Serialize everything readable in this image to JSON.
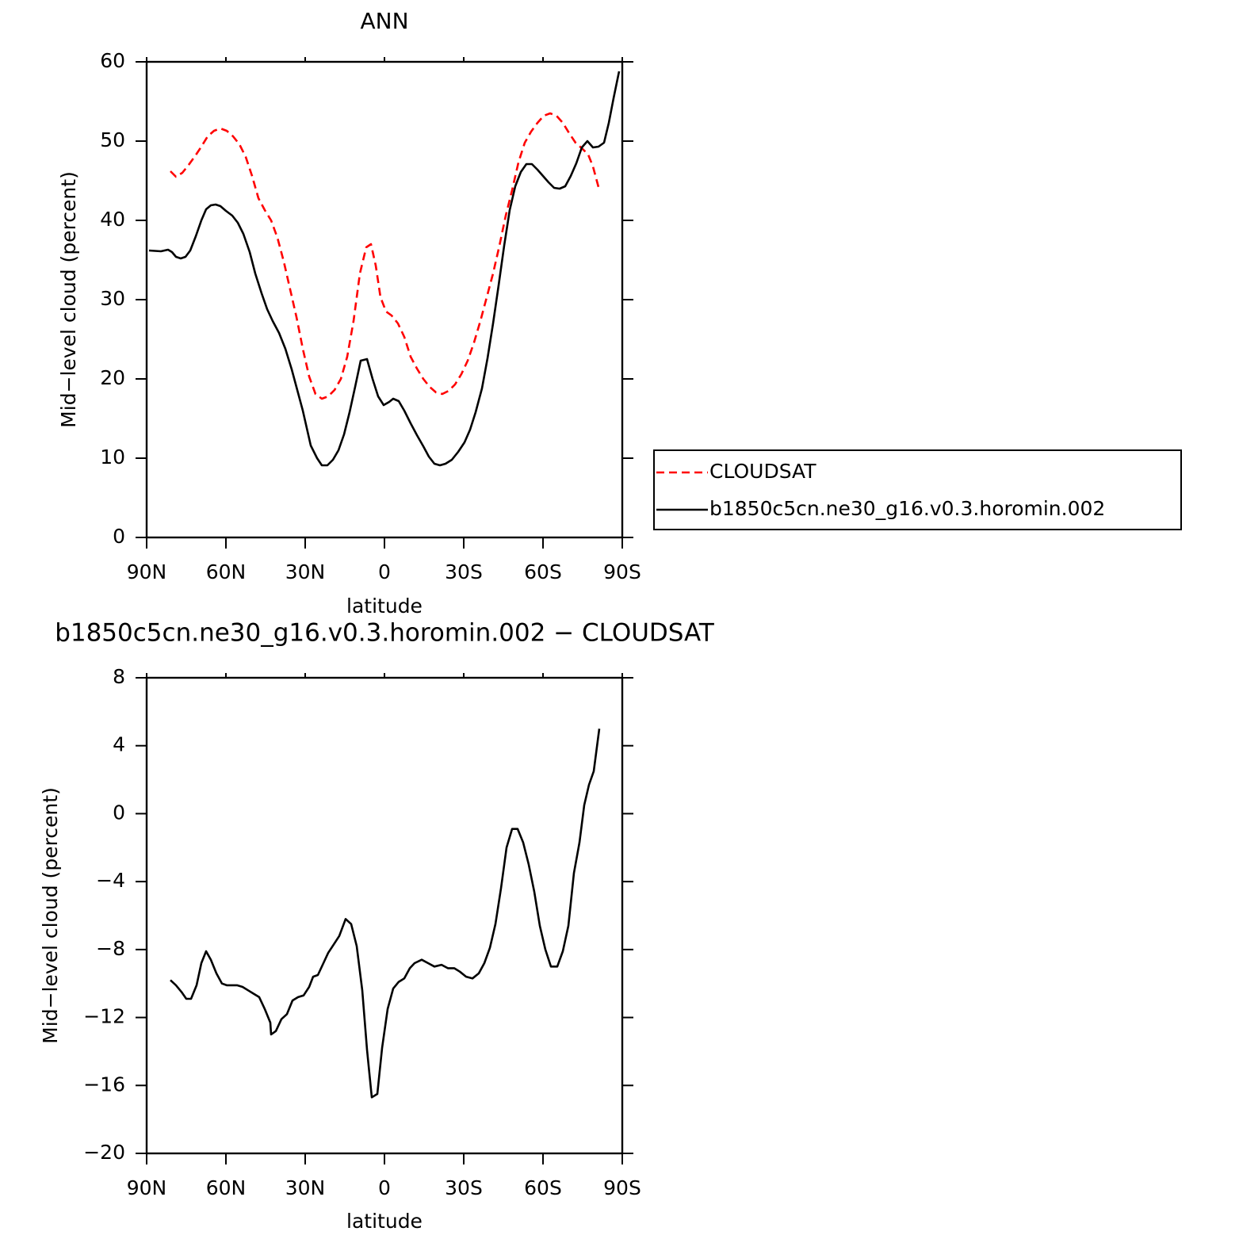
{
  "chart_data": [
    {
      "type": "line",
      "title": "ANN",
      "xlabel": "latitude",
      "ylabel": "Mid−level cloud (percent)",
      "xlim": [
        90,
        -90
      ],
      "xticks": [
        {
          "value": 90,
          "label": "90N"
        },
        {
          "value": 60,
          "label": "60N"
        },
        {
          "value": 30,
          "label": "30N"
        },
        0,
        {
          "value": -30,
          "label": "30S"
        },
        {
          "value": -60,
          "label": "60S"
        },
        {
          "value": -90,
          "label": "90S"
        }
      ],
      "ylim": [
        0,
        60
      ],
      "yticks": [
        0,
        10,
        20,
        30,
        40,
        50,
        60
      ],
      "legend": "right",
      "series": [
        {
          "name": "CLOUDSAT",
          "color": "#ff0000",
          "dash": true,
          "x": [
            81,
            78.9,
            76.5,
            74.1,
            71.7,
            69.3,
            66.9,
            64.5,
            62.1,
            59.7,
            57.3,
            54.9,
            52.5,
            50.1,
            47.7,
            45.3,
            42.9,
            40.5,
            38.1,
            35.7,
            33.3,
            30.9,
            28.5,
            26.1,
            23.7,
            21.3,
            18.9,
            16.5,
            14.1,
            11.7,
            9.3,
            6.9,
            5.1,
            3.3,
            1.5,
            -0.6,
            -2.7,
            -5.1,
            -7.5,
            -9.9,
            -12.3,
            -14.7,
            -17.1,
            -19.5,
            -21.9,
            -24.3,
            -26.7,
            -29.1,
            -31.5,
            -33.9,
            -36.3,
            -38.7,
            -41.1,
            -43.5,
            -45.9,
            -48.3,
            -50.7,
            -53.1,
            -55.5,
            -57.9,
            -60.3,
            -62.7,
            -65.1,
            -67.5,
            -69.9,
            -72.3,
            -74.7,
            -77.1,
            -78.9,
            -81
          ],
          "values": [
            46.2,
            45.5,
            46.0,
            47.0,
            48.1,
            49.3,
            50.6,
            51.3,
            51.6,
            51.3,
            50.6,
            49.6,
            48.0,
            45.6,
            42.8,
            41.3,
            40.0,
            37.8,
            34.8,
            31.3,
            27.8,
            23.8,
            20.3,
            18.1,
            17.5,
            17.8,
            18.6,
            20.0,
            22.8,
            27.3,
            33.3,
            36.6,
            37.0,
            34.3,
            30.3,
            28.5,
            28.0,
            27.0,
            25.3,
            22.8,
            21.3,
            20.0,
            19.0,
            18.3,
            18.1,
            18.5,
            19.3,
            20.6,
            22.3,
            24.6,
            27.3,
            30.3,
            33.3,
            36.8,
            40.6,
            43.8,
            47.3,
            49.8,
            51.2,
            52.3,
            53.2,
            53.5,
            53.2,
            52.3,
            51.0,
            49.8,
            49.1,
            48.3,
            46.8,
            44.2
          ]
        },
        {
          "name": "b1850c5cn.ne30_g16.v0.3.horomin.002",
          "color": "#000000",
          "dash": false,
          "x": [
            89.1,
            84.6,
            81.9,
            80.4,
            78.9,
            77.1,
            75.3,
            73.5,
            71.4,
            69.3,
            67.5,
            65.7,
            63.9,
            62.1,
            60,
            57.6,
            55.5,
            53.4,
            51,
            48.9,
            46.5,
            44.4,
            42.3,
            39.9,
            37.5,
            35.1,
            33,
            30.9,
            27.9,
            25.5,
            23.7,
            21.6,
            19.5,
            17.4,
            15.3,
            13.2,
            11.1,
            9,
            6.6,
            4.5,
            2.4,
            0.3,
            -1.8,
            -3.3,
            -5.4,
            -7.5,
            -9.9,
            -12.3,
            -14.7,
            -16.8,
            -18.9,
            -21,
            -23.1,
            -25.5,
            -27.9,
            -30.3,
            -32.4,
            -34.5,
            -36.9,
            -39,
            -41.1,
            -43.2,
            -45.3,
            -47.4,
            -49.5,
            -51.6,
            -53.7,
            -55.8,
            -57.9,
            -60,
            -62.1,
            -64.2,
            -66.3,
            -68.4,
            -70.5,
            -72.6,
            -74.7,
            -76.8,
            -78.9,
            -81,
            -83.1,
            -84.9,
            -86.7,
            -88.8
          ],
          "values": [
            36.2,
            36.1,
            36.3,
            36.0,
            35.4,
            35.2,
            35.4,
            36.2,
            38.0,
            40.0,
            41.4,
            41.9,
            42.0,
            41.8,
            41.2,
            40.6,
            39.7,
            38.3,
            36.0,
            33.3,
            30.8,
            28.8,
            27.3,
            25.8,
            23.8,
            21.2,
            18.6,
            16.0,
            11.6,
            10.0,
            9.1,
            9.1,
            9.8,
            11.0,
            13.0,
            15.8,
            19.0,
            22.3,
            22.5,
            20.0,
            17.8,
            16.7,
            17.1,
            17.5,
            17.2,
            16.0,
            14.4,
            12.9,
            11.5,
            10.2,
            9.3,
            9.1,
            9.3,
            9.8,
            10.8,
            12.0,
            13.6,
            15.8,
            18.8,
            22.6,
            27.0,
            31.8,
            36.8,
            41.3,
            44.3,
            46.1,
            47.1,
            47.1,
            46.4,
            45.6,
            44.8,
            44.1,
            44.0,
            44.3,
            45.6,
            47.2,
            49.2,
            50.0,
            49.2,
            49.3,
            49.8,
            52.3,
            55.4,
            58.8
          ]
        }
      ]
    },
    {
      "type": "line",
      "title": "b1850c5cn.ne30_g16.v0.3.horomin.002 − CLOUDSAT",
      "xlabel": "latitude",
      "ylabel": "Mid−level cloud (percent)",
      "xlim": [
        90,
        -90
      ],
      "xticks": [
        {
          "value": 90,
          "label": "90N"
        },
        {
          "value": 60,
          "label": "60N"
        },
        {
          "value": 30,
          "label": "30N"
        },
        0,
        {
          "value": -30,
          "label": "30S"
        },
        {
          "value": -60,
          "label": "60S"
        },
        {
          "value": -90,
          "label": "90S"
        }
      ],
      "ylim": [
        -20,
        8
      ],
      "yticks": [
        8,
        4,
        0,
        {
          "value": -4,
          "label": "−4"
        },
        {
          "value": -8,
          "label": "−8"
        },
        {
          "value": -12,
          "label": "−12"
        },
        {
          "value": -16,
          "label": "−16"
        },
        {
          "value": -20,
          "label": "−20"
        }
      ],
      "series": [
        {
          "color": "#000000",
          "dash": false,
          "x": [
            81,
            78.9,
            76.8,
            75,
            73.2,
            71.1,
            69.3,
            67.5,
            65.7,
            63.6,
            61.5,
            59.7,
            57.9,
            55.8,
            53.7,
            51.6,
            49.5,
            47.4,
            45.3,
            43.2,
            42.9,
            41.1,
            39,
            36.9,
            34.8,
            32.7,
            30.6,
            28.5,
            27,
            25.2,
            23.1,
            21.3,
            19.2,
            17.1,
            14.7,
            12.6,
            10.5,
            8.4,
            6.6,
            4.8,
            2.7,
            0.9,
            -1.2,
            -3.3,
            -5.4,
            -7.5,
            -9.6,
            -11.4,
            -14.1,
            -16.5,
            -18.9,
            -21.6,
            -24,
            -26.4,
            -28.5,
            -30.9,
            -33.3,
            -35.7,
            -37.8,
            -39.9,
            -42,
            -44.1,
            -46.2,
            -48.3,
            -50.4,
            -52.5,
            -54.6,
            -56.7,
            -58.8,
            -60.9,
            -63,
            -65.4,
            -67.5,
            -69.6,
            -71.7,
            -73.8,
            -75.6,
            -77.4,
            -79.2,
            -81.3
          ],
          "values": [
            -9.8,
            -10.1,
            -10.5,
            -10.9,
            -10.9,
            -10.1,
            -8.8,
            -8.1,
            -8.6,
            -9.4,
            -10.0,
            -10.1,
            -10.1,
            -10.1,
            -10.2,
            -10.4,
            -10.6,
            -10.8,
            -11.5,
            -12.3,
            -13.0,
            -12.8,
            -12.1,
            -11.8,
            -11.0,
            -10.8,
            -10.7,
            -10.2,
            -9.6,
            -9.5,
            -8.8,
            -8.2,
            -7.7,
            -7.2,
            -6.2,
            -6.5,
            -7.8,
            -10.4,
            -13.9,
            -16.7,
            -16.5,
            -13.8,
            -11.5,
            -10.3,
            -9.9,
            -9.7,
            -9.1,
            -8.8,
            -8.6,
            -8.8,
            -9.0,
            -8.9,
            -9.1,
            -9.1,
            -9.3,
            -9.6,
            -9.7,
            -9.4,
            -8.8,
            -7.9,
            -6.5,
            -4.4,
            -2.0,
            -0.9,
            -0.9,
            -1.7,
            -3.0,
            -4.6,
            -6.6,
            -8.0,
            -9.0,
            -9.0,
            -8.1,
            -6.6,
            -3.5,
            -1.7,
            0.5,
            1.7,
            2.5,
            5.0
          ]
        }
      ]
    }
  ]
}
